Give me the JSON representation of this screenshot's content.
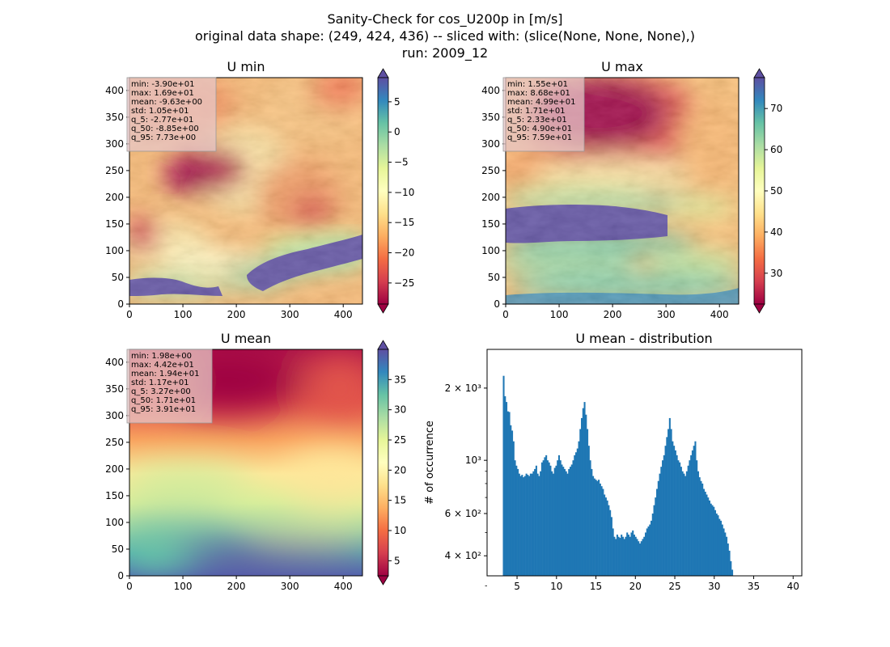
{
  "figure": {
    "title_lines": [
      "Sanity-Check for cos_U200p in [m/s]",
      "original data shape: (249, 424, 436) -- sliced with: (slice(None, None, None),)",
      "run: 2009_12"
    ]
  },
  "colors": {
    "hist_bar": "#1f77b4",
    "colormap": "Spectral",
    "colormap_stops": [
      "#9e0142",
      "#d53e4f",
      "#f46d43",
      "#fdae61",
      "#fee08b",
      "#ffffbf",
      "#e6f598",
      "#abdda4",
      "#66c2a5",
      "#3288bd",
      "#5e4fa2"
    ]
  },
  "chart_data": [
    {
      "type": "heatmap",
      "title": "U min",
      "xlim": [
        0,
        436
      ],
      "ylim": [
        0,
        424
      ],
      "xticks": [
        0,
        100,
        200,
        300,
        400
      ],
      "yticks": [
        0,
        50,
        100,
        150,
        200,
        250,
        300,
        350,
        400
      ],
      "colorbar": {
        "min": -28.5,
        "max": 9,
        "ticks": [
          5,
          0,
          -5,
          -10,
          -15,
          -20,
          -25
        ],
        "tick_labels": [
          "5",
          "0",
          "−5",
          "−10",
          "−15",
          "−20",
          "−25"
        ],
        "extend": "both"
      },
      "stats": [
        "min: -3.90e+01",
        "max: 1.69e+01",
        "mean: -9.63e+00",
        "std: 1.05e+01",
        "q_5: -2.77e+01",
        "q_50: -8.85e+00",
        "q_95: 7.73e+00"
      ]
    },
    {
      "type": "heatmap",
      "title": "U max",
      "xlim": [
        0,
        436
      ],
      "ylim": [
        0,
        424
      ],
      "xticks": [
        0,
        100,
        200,
        300,
        400
      ],
      "yticks": [
        0,
        50,
        100,
        150,
        200,
        250,
        300,
        350,
        400
      ],
      "colorbar": {
        "min": 22.5,
        "max": 77.5,
        "ticks": [
          70,
          60,
          50,
          40,
          30
        ],
        "tick_labels": [
          "70",
          "60",
          "50",
          "40",
          "30"
        ],
        "extend": "both"
      },
      "stats": [
        "min: 1.55e+01",
        "max: 8.68e+01",
        "mean: 4.99e+01",
        "std: 1.71e+01",
        "q_5: 2.33e+01",
        "q_50: 4.90e+01",
        "q_95: 7.59e+01"
      ]
    },
    {
      "type": "heatmap",
      "title": "U mean",
      "xlim": [
        0,
        436
      ],
      "ylim": [
        0,
        424
      ],
      "xticks": [
        0,
        100,
        200,
        300,
        400
      ],
      "yticks": [
        0,
        50,
        100,
        150,
        200,
        250,
        300,
        350,
        400
      ],
      "colorbar": {
        "min": 2.5,
        "max": 40,
        "ticks": [
          35,
          30,
          25,
          20,
          15,
          10,
          5
        ],
        "tick_labels": [
          "35",
          "30",
          "25",
          "20",
          "15",
          "10",
          "5"
        ],
        "extend": "both"
      },
      "stats": [
        "min: 1.98e+00",
        "max: 4.42e+01",
        "mean: 1.94e+01",
        "std: 1.17e+01",
        "q_5: 3.27e+00",
        "q_50: 1.71e+01",
        "q_95: 3.91e+01"
      ]
    },
    {
      "type": "bar",
      "title": "U mean - distribution",
      "ylabel": "# of occurrence",
      "yscale": "log",
      "xlim": [
        1.2,
        41.1
      ],
      "ylim": [
        330,
        2900
      ],
      "xticks": [
        5,
        10,
        15,
        20,
        25,
        30,
        35,
        40
      ],
      "yticks_major": [
        {
          "value": 2000,
          "label": "2 × 10³"
        },
        {
          "value": 1000,
          "label": "10³"
        },
        {
          "value": 600,
          "label": "6 × 10²"
        },
        {
          "value": 400,
          "label": "4 × 10²"
        }
      ],
      "yticks_minor": [
        300,
        500,
        700,
        800,
        900
      ],
      "bin_start": 3.2,
      "bin_width": 0.18,
      "values": [
        2250,
        1850,
        1750,
        1600,
        1590,
        1400,
        1330,
        1200,
        1000,
        950,
        920,
        880,
        860,
        870,
        850,
        860,
        880,
        870,
        860,
        880,
        880,
        900,
        920,
        950,
        880,
        860,
        900,
        980,
        1000,
        1030,
        1050,
        1000,
        980,
        950,
        900,
        880,
        930,
        950,
        1000,
        1050,
        1000,
        960,
        940,
        920,
        900,
        880,
        920,
        940,
        960,
        1000,
        1050,
        1080,
        1120,
        1200,
        1350,
        1500,
        1650,
        1750,
        1550,
        1350,
        1150,
        1000,
        920,
        860,
        840,
        830,
        820,
        830,
        800,
        780,
        760,
        720,
        700,
        680,
        650,
        620,
        580,
        520,
        480,
        470,
        490,
        480,
        475,
        490,
        480,
        470,
        480,
        500,
        490,
        480,
        500,
        510,
        490,
        480,
        470,
        460,
        450,
        460,
        470,
        480,
        500,
        520,
        530,
        540,
        560,
        600,
        650,
        700,
        760,
        820,
        880,
        940,
        1000,
        1050,
        1150,
        1250,
        1350,
        1500,
        1350,
        1200,
        1150,
        1100,
        1050,
        1000,
        980,
        940,
        900,
        880,
        860,
        900,
        950,
        1000,
        1050,
        1100,
        1150,
        1200,
        1000,
        900,
        850,
        820,
        800,
        760,
        740,
        720,
        700,
        680,
        660,
        650,
        640,
        620,
        600,
        590,
        570,
        560,
        540,
        520,
        500,
        480,
        450,
        420,
        380,
        350
      ]
    }
  ]
}
